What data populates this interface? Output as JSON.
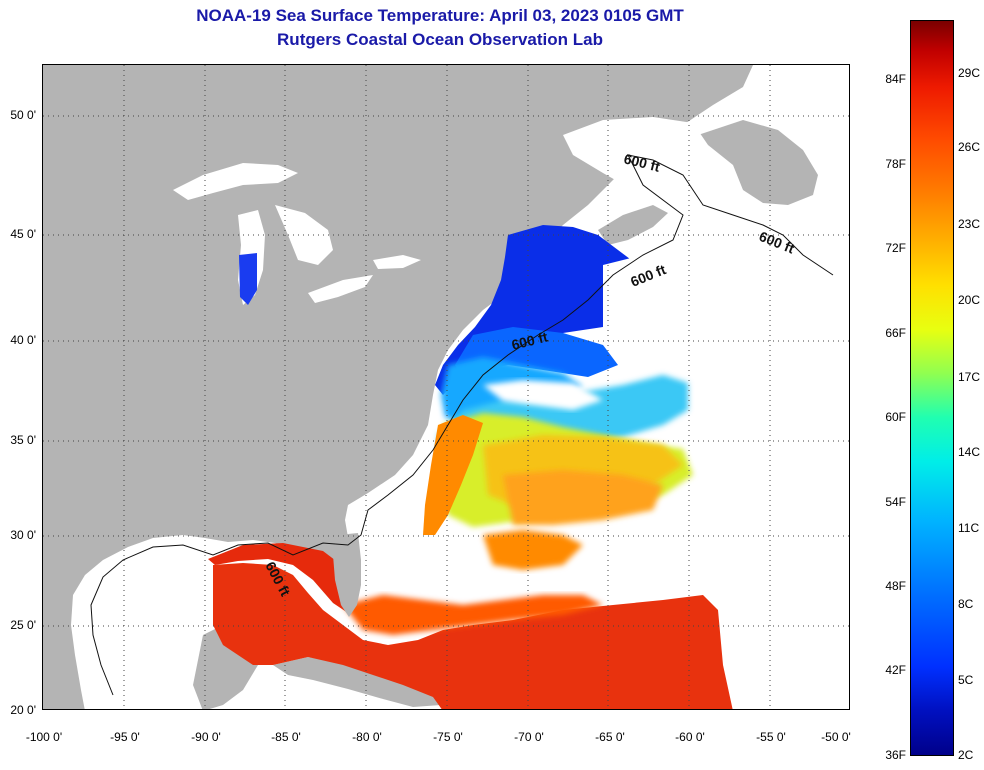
{
  "title": {
    "line1": "NOAA-19 Sea Surface Temperature:  April 03, 2023 0105 GMT",
    "line2": "Rutgers Coastal Ocean Observation Lab"
  },
  "map": {
    "lat_labels": [
      "50 0'",
      "45 0'",
      "40 0'",
      "35 0'",
      "30 0'",
      "25 0'",
      "20 0'"
    ],
    "lon_labels": [
      "-100 0'",
      "-95 0'",
      "-90 0'",
      "-85 0'",
      "-80 0'",
      "-75 0'",
      "-70 0'",
      "-65 0'",
      "-60 0'",
      "-55 0'",
      "-50 0'"
    ],
    "contour_labels": [
      "600 ft",
      "600 ft",
      "600 ft",
      "600 ft",
      "600 ft"
    ],
    "land_color": "#b4b4b4",
    "cloud_color": "#ffffff"
  },
  "colorbar": {
    "fahrenheit_labels": [
      "84F",
      "78F",
      "72F",
      "66F",
      "60F",
      "54F",
      "48F",
      "42F",
      "36F"
    ],
    "celsius_labels": [
      "29C",
      "26C",
      "23C",
      "20C",
      "17C",
      "14C",
      "11C",
      "8C",
      "5C",
      "2C"
    ]
  }
}
